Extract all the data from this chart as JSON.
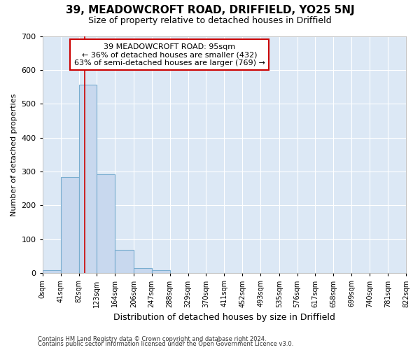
{
  "title": "39, MEADOWCROFT ROAD, DRIFFIELD, YO25 5NJ",
  "subtitle": "Size of property relative to detached houses in Driffield",
  "xlabel": "Distribution of detached houses by size in Driffield",
  "ylabel": "Number of detached properties",
  "footnote1": "Contains HM Land Registry data © Crown copyright and database right 2024.",
  "footnote2": "Contains public sector information licensed under the Open Government Licence v3.0.",
  "bin_edges": [
    0,
    41,
    82,
    123,
    164,
    206,
    247,
    288,
    329,
    370,
    411,
    452,
    493,
    535,
    576,
    617,
    658,
    699,
    740,
    781,
    822
  ],
  "bar_heights": [
    8,
    283,
    557,
    291,
    68,
    14,
    8,
    0,
    0,
    0,
    0,
    0,
    0,
    0,
    0,
    0,
    0,
    0,
    0,
    0
  ],
  "bar_color": "#c8d8ee",
  "bar_edge_color": "#7aaed0",
  "vline_x": 95,
  "vline_color": "#cc0000",
  "ylim": [
    0,
    700
  ],
  "yticks": [
    0,
    100,
    200,
    300,
    400,
    500,
    600,
    700
  ],
  "annotation_line1": "39 MEADOWCROFT ROAD: 95sqm",
  "annotation_line2": "← 36% of detached houses are smaller (432)",
  "annotation_line3": "63% of semi-detached houses are larger (769) →",
  "annotation_box_color": "white",
  "annotation_box_edge_color": "#cc0000",
  "background_color": "#ffffff",
  "plot_background_color": "#dce8f5",
  "grid_color": "#ffffff",
  "tick_label_fontsize": 7,
  "ylabel_fontsize": 8,
  "xlabel_fontsize": 9,
  "title_fontsize": 11,
  "subtitle_fontsize": 9,
  "footnote_fontsize": 6
}
